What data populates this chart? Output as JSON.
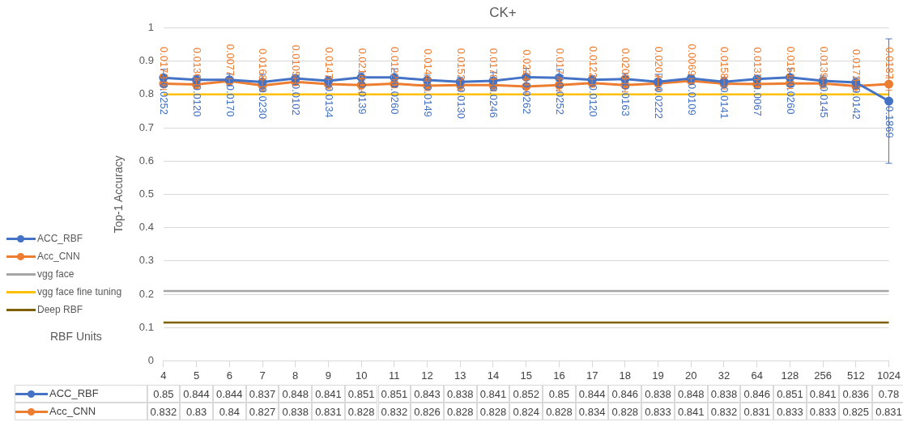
{
  "chart_data": {
    "type": "line",
    "title": "CK+",
    "xlabel": "RBF Units",
    "ylabel": "Top-1 Accuracy",
    "categories": [
      "4",
      "5",
      "6",
      "7",
      "8",
      "9",
      "10",
      "11",
      "12",
      "13",
      "14",
      "15",
      "16",
      "17",
      "18",
      "19",
      "20",
      "32",
      "64",
      "128",
      "256",
      "512",
      "1024"
    ],
    "series": [
      {
        "name": "ACC_RBF",
        "color": "#4472c4",
        "marker": "circle",
        "values": [
          0.85,
          0.844,
          0.844,
          0.837,
          0.848,
          0.841,
          0.851,
          0.851,
          0.843,
          0.838,
          0.841,
          0.852,
          0.85,
          0.844,
          0.846,
          0.838,
          0.848,
          0.838,
          0.846,
          0.851,
          0.841,
          0.836,
          0.78
        ],
        "value_labels": [
          "0.85",
          "0.844",
          "0.844",
          "0.837",
          "0.848",
          "0.841",
          "0.851",
          "0.851",
          "0.843",
          "0.838",
          "0.841",
          "0.852",
          "0.85",
          "0.844",
          "0.846",
          "0.838",
          "0.848",
          "0.838",
          "0.846",
          "0.851",
          "0.841",
          "0.836",
          "0.78"
        ],
        "errors": [
          0.0252,
          0.012,
          0.017,
          0.023,
          0.0102,
          0.0134,
          0.0139,
          0.026,
          0.0149,
          0.013,
          0.0246,
          0.0262,
          0.0252,
          0.012,
          0.0163,
          0.0222,
          0.0109,
          0.0141,
          0.0067,
          0.026,
          0.0145,
          0.0142,
          0.1869
        ]
      },
      {
        "name": "Acc_CNN",
        "color": "#ed7d31",
        "marker": "circle",
        "values": [
          0.832,
          0.83,
          0.84,
          0.827,
          0.838,
          0.831,
          0.828,
          0.832,
          0.826,
          0.828,
          0.828,
          0.824,
          0.828,
          0.834,
          0.828,
          0.833,
          0.841,
          0.832,
          0.831,
          0.833,
          0.833,
          0.825,
          0.831
        ],
        "value_labels": [
          "0.832",
          "0.83",
          "0.84",
          "0.827",
          "0.838",
          "0.831",
          "0.828",
          "0.832",
          "0.826",
          "0.828",
          "0.828",
          "0.824",
          "0.828",
          "0.834",
          "0.828",
          "0.833",
          "0.841",
          "0.832",
          "0.831",
          "0.833",
          "0.833",
          "0.825",
          "0.831"
        ],
        "errors": [
          0.0172,
          0.013,
          0.0077,
          0.0168,
          0.0105,
          0.0147,
          0.0218,
          0.0122,
          0.0144,
          0.0152,
          0.0178,
          0.0224,
          0.0177,
          0.0122,
          0.0208,
          0.0207,
          0.0069,
          0.0158,
          0.0132,
          0.0151,
          0.0139,
          0.0172,
          0.0187
        ]
      },
      {
        "name": "vgg face",
        "color": "#a5a5a5",
        "marker": "none",
        "values": [
          0.21,
          0.21,
          0.21,
          0.21,
          0.21,
          0.21,
          0.21,
          0.21,
          0.21,
          0.21,
          0.21,
          0.21,
          0.21,
          0.21,
          0.21,
          0.21,
          0.21,
          0.21,
          0.21,
          0.21,
          0.21,
          0.21,
          0.21
        ]
      },
      {
        "name": "vgg face fine tuning",
        "color": "#ffc000",
        "marker": "none",
        "values": [
          0.8,
          0.8,
          0.8,
          0.8,
          0.8,
          0.8,
          0.8,
          0.8,
          0.8,
          0.8,
          0.8,
          0.8,
          0.8,
          0.8,
          0.8,
          0.8,
          0.8,
          0.8,
          0.8,
          0.8,
          0.8,
          0.8,
          0.8
        ]
      },
      {
        "name": "Deep RBF",
        "color": "#7f6000",
        "marker": "none",
        "values": [
          0.115,
          0.115,
          0.115,
          0.115,
          0.115,
          0.115,
          0.115,
          0.115,
          0.115,
          0.115,
          0.115,
          0.115,
          0.115,
          0.115,
          0.115,
          0.115,
          0.115,
          0.115,
          0.115,
          0.115,
          0.115,
          0.115,
          0.115
        ]
      }
    ],
    "annotations": [
      {
        "text": "0.0252",
        "x": "4",
        "y": 0.85
      },
      {
        "text": "0.0120",
        "x": "5",
        "y": 0.844
      },
      {
        "text": "0.0170",
        "x": "6",
        "y": 0.844
      },
      {
        "text": "0.0230",
        "x": "7",
        "y": 0.837
      },
      {
        "text": "0.0102",
        "x": "8",
        "y": 0.848
      },
      {
        "text": "0.0134",
        "x": "9",
        "y": 0.841
      },
      {
        "text": "0.0139",
        "x": "10",
        "y": 0.851
      },
      {
        "text": "0.0260",
        "x": "11",
        "y": 0.851
      },
      {
        "text": "0.0149",
        "x": "12",
        "y": 0.843
      },
      {
        "text": "0.0130",
        "x": "13",
        "y": 0.838
      },
      {
        "text": "0.0246",
        "x": "14",
        "y": 0.841
      },
      {
        "text": "0.0262",
        "x": "15",
        "y": 0.852
      },
      {
        "text": "0.0252",
        "x": "16",
        "y": 0.85
      },
      {
        "text": "0.0120",
        "x": "17",
        "y": 0.844
      },
      {
        "text": "0.0163",
        "x": "18",
        "y": 0.846
      },
      {
        "text": "0.0222",
        "x": "19",
        "y": 0.838
      },
      {
        "text": "0.0109",
        "x": "20",
        "y": 0.848
      },
      {
        "text": "0.0141",
        "x": "32",
        "y": 0.838
      },
      {
        "text": "0.0067",
        "x": "64",
        "y": 0.846
      },
      {
        "text": "0.0260",
        "x": "128",
        "y": 0.851
      },
      {
        "text": "0.0145",
        "x": "256",
        "y": 0.841
      },
      {
        "text": "0.0142",
        "x": "512",
        "y": 0.836
      },
      {
        "text": "0.1869",
        "x": "1024",
        "y": 0.78
      },
      {
        "text": "0.0172",
        "x": "4",
        "y": 0.832
      },
      {
        "text": "0.0130",
        "x": "5",
        "y": 0.83
      },
      {
        "text": "0.0077",
        "x": "6",
        "y": 0.84
      },
      {
        "text": "0.0168",
        "x": "7",
        "y": 0.827
      },
      {
        "text": "0.0105",
        "x": "8",
        "y": 0.838
      },
      {
        "text": "0.0147",
        "x": "9",
        "y": 0.831
      },
      {
        "text": "0.0218",
        "x": "10",
        "y": 0.828
      },
      {
        "text": "0.0122",
        "x": "11",
        "y": 0.832
      },
      {
        "text": "0.0144",
        "x": "12",
        "y": 0.826
      },
      {
        "text": "0.0152",
        "x": "13",
        "y": 0.828
      },
      {
        "text": "0.0178",
        "x": "14",
        "y": 0.828
      },
      {
        "text": "0.0224",
        "x": "15",
        "y": 0.824
      },
      {
        "text": "0.0177",
        "x": "16",
        "y": 0.828
      },
      {
        "text": "0.0122",
        "x": "17",
        "y": 0.834
      },
      {
        "text": "0.0208",
        "x": "18",
        "y": 0.828
      },
      {
        "text": "0.0207",
        "x": "19",
        "y": 0.833
      },
      {
        "text": "0.0069",
        "x": "20",
        "y": 0.841
      },
      {
        "text": "0.0158",
        "x": "32",
        "y": 0.832
      },
      {
        "text": "0.0132",
        "x": "64",
        "y": 0.831
      },
      {
        "text": "0.0151",
        "x": "128",
        "y": 0.833
      },
      {
        "text": "0.0139",
        "x": "256",
        "y": 0.833
      },
      {
        "text": "0.0172",
        "x": "512",
        "y": 0.825
      },
      {
        "text": "0.0187",
        "x": "1024",
        "y": 0.831
      }
    ],
    "ylim": [
      0,
      1
    ],
    "yticks": [
      0,
      0.1,
      0.2,
      0.3,
      0.4,
      0.5,
      0.6,
      0.7,
      0.8,
      0.9,
      1
    ],
    "grid": "y",
    "legend": "left"
  }
}
